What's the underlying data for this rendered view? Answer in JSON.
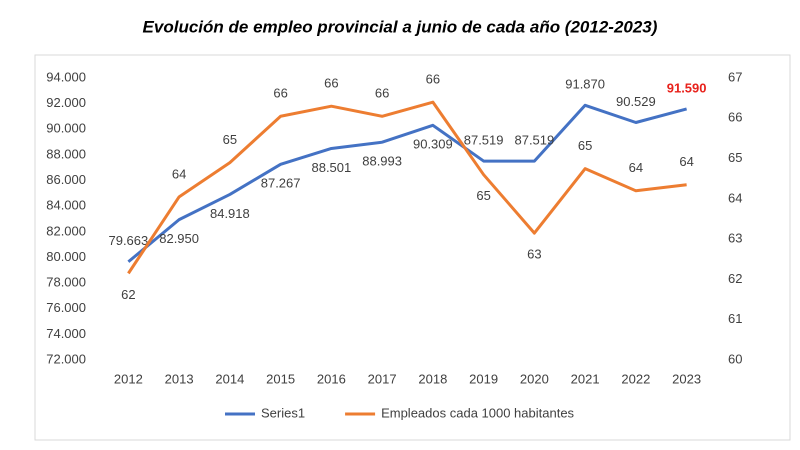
{
  "chart_data": {
    "type": "line",
    "title": "Evolución de empleo provincial a junio de cada año (2012-2023)",
    "categories": [
      "2012",
      "2013",
      "2014",
      "2015",
      "2016",
      "2017",
      "2018",
      "2019",
      "2020",
      "2021",
      "2022",
      "2023"
    ],
    "series": [
      {
        "name": "Series1",
        "color": "#4472c4",
        "axis": "y",
        "values": [
          79663,
          82950,
          84918,
          87267,
          88501,
          88993,
          90309,
          87519,
          87519,
          91870,
          90529,
          91590
        ],
        "value_labels": [
          "79.663",
          "82.950",
          "84.918",
          "87.267",
          "88.501",
          "88.993",
          "90.309",
          "87.519",
          "87.519",
          "91.870",
          "90.529",
          "91.590"
        ]
      },
      {
        "name": "Empleados cada 1000 habitantes",
        "color": "#ed7d31",
        "axis": "y2",
        "values": [
          62.15,
          64.05,
          64.9,
          66.05,
          66.3,
          66.05,
          66.4,
          64.6,
          63.15,
          64.75,
          64.2,
          64.35
        ],
        "value_labels": [
          "62",
          "64",
          "65",
          "66",
          "66",
          "66",
          "66",
          "65",
          "63",
          "65",
          "64",
          "64"
        ]
      }
    ],
    "highlight": {
      "series": 0,
      "index": 11,
      "color": "#e8211b"
    },
    "ylim": [
      72000,
      94000
    ],
    "yticks": [
      {
        "value": 72000,
        "label": "72.000"
      },
      {
        "value": 74000,
        "label": "74.000"
      },
      {
        "value": 76000,
        "label": "76.000"
      },
      {
        "value": 78000,
        "label": "78.000"
      },
      {
        "value": 80000,
        "label": "80.000"
      },
      {
        "value": 82000,
        "label": "82.000"
      },
      {
        "value": 84000,
        "label": "84.000"
      },
      {
        "value": 86000,
        "label": "86.000"
      },
      {
        "value": 88000,
        "label": "88.000"
      },
      {
        "value": 90000,
        "label": "90.000"
      },
      {
        "value": 92000,
        "label": "92.000"
      },
      {
        "value": 94000,
        "label": "94.000"
      }
    ],
    "y2lim": [
      60,
      67
    ],
    "y2ticks": [
      60,
      61,
      62,
      63,
      64,
      65,
      66,
      67
    ],
    "grid": false,
    "legend": "bottom"
  }
}
